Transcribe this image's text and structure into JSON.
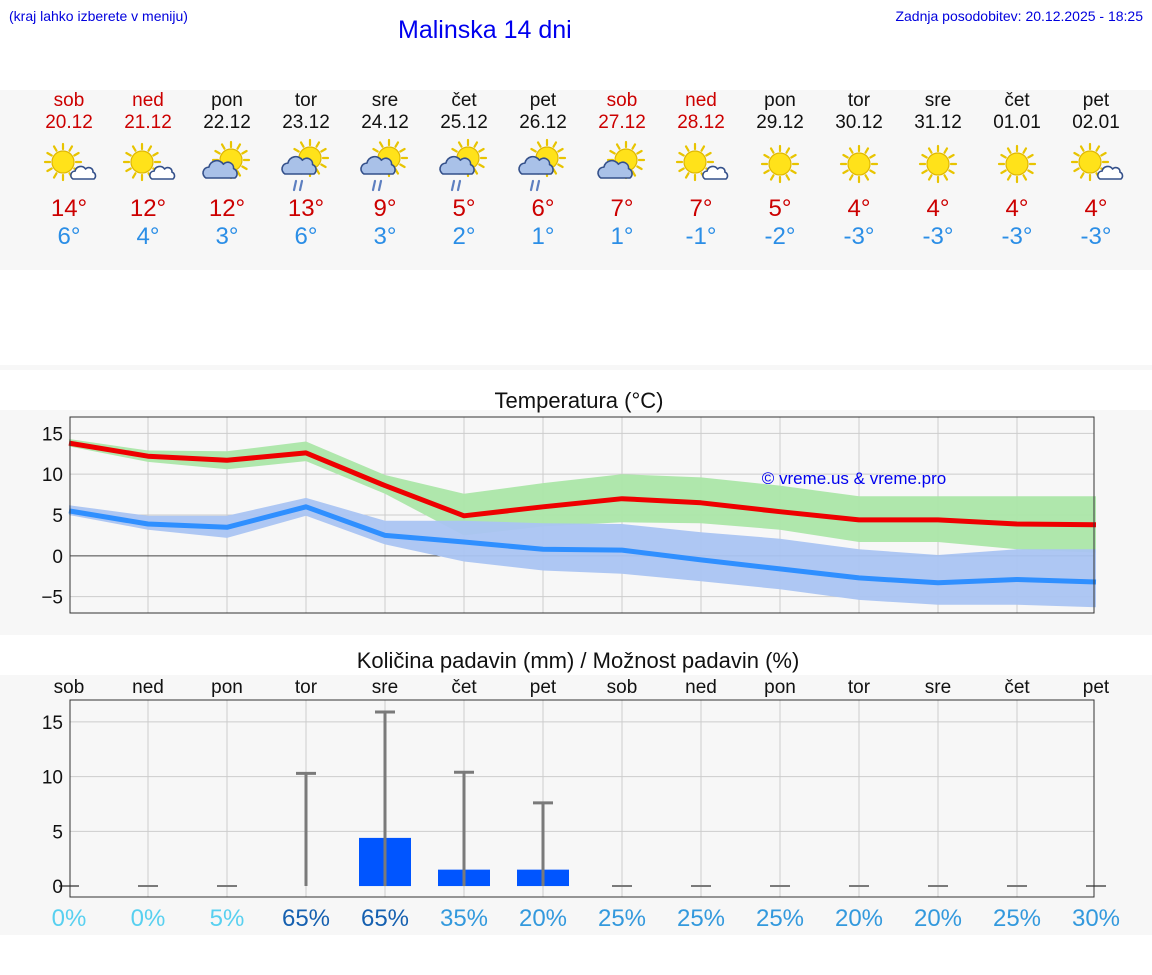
{
  "header": {
    "menu_hint": "(kraj lahko izberete v meniju)",
    "title": "Malinska 14 dni",
    "updated": "Zadnja posodobitev: 20.12.2025 - 18:25"
  },
  "days": [
    {
      "name": "sob",
      "date": "20.12",
      "weekend": true,
      "icon": "sun-cloud-icon",
      "tmax": "14°",
      "tmin": "6°"
    },
    {
      "name": "ned",
      "date": "21.12",
      "weekend": true,
      "icon": "sun-cloud-icon",
      "tmax": "12°",
      "tmin": "4°"
    },
    {
      "name": "pon",
      "date": "22.12",
      "weekend": false,
      "icon": "cloud-sun-icon",
      "tmax": "12°",
      "tmin": "3°"
    },
    {
      "name": "tor",
      "date": "23.12",
      "weekend": false,
      "icon": "cloud-rain-sun-icon",
      "tmax": "13°",
      "tmin": "6°"
    },
    {
      "name": "sre",
      "date": "24.12",
      "weekend": false,
      "icon": "cloud-rain-sun-icon",
      "tmax": "9°",
      "tmin": "3°"
    },
    {
      "name": "čet",
      "date": "25.12",
      "weekend": false,
      "icon": "cloud-rain-sun-icon",
      "tmax": "5°",
      "tmin": "2°"
    },
    {
      "name": "pet",
      "date": "26.12",
      "weekend": false,
      "icon": "cloud-rain-sun-icon",
      "tmax": "6°",
      "tmin": "1°"
    },
    {
      "name": "sob",
      "date": "27.12",
      "weekend": true,
      "icon": "cloud-sun-icon",
      "tmax": "7°",
      "tmin": "1°"
    },
    {
      "name": "ned",
      "date": "28.12",
      "weekend": true,
      "icon": "sun-cloud-icon",
      "tmax": "7°",
      "tmin": "-1°"
    },
    {
      "name": "pon",
      "date": "29.12",
      "weekend": false,
      "icon": "sun-icon",
      "tmax": "5°",
      "tmin": "-2°"
    },
    {
      "name": "tor",
      "date": "30.12",
      "weekend": false,
      "icon": "sun-icon",
      "tmax": "4°",
      "tmin": "-3°"
    },
    {
      "name": "sre",
      "date": "31.12",
      "weekend": false,
      "icon": "sun-icon",
      "tmax": "4°",
      "tmin": "-3°"
    },
    {
      "name": "čet",
      "date": "01.01",
      "weekend": false,
      "icon": "sun-icon",
      "tmax": "4°",
      "tmin": "-3°"
    },
    {
      "name": "pet",
      "date": "02.01",
      "weekend": false,
      "icon": "sun-cloud-icon",
      "tmax": "4°",
      "tmin": "-3°"
    }
  ],
  "colors": {
    "max_line": "#ee0000",
    "max_band": "#abe6a8",
    "min_line": "#2f8fff",
    "min_band": "#aac4f2",
    "precip_bar": "#0055ff",
    "error_bar": "#7a7a7a",
    "grid": "#cccccc",
    "prob_low": "#58d0f0",
    "prob_mid": "#3399dd",
    "prob_high": "#1560b0"
  },
  "chart_data": [
    {
      "type": "line",
      "title": "Temperatura (°C)",
      "watermark": "© vreme.us & vreme.pro",
      "x": [
        0,
        1,
        2,
        3,
        4,
        5,
        6,
        7,
        8,
        9,
        10,
        11,
        12,
        13
      ],
      "ylim": [
        -7,
        17
      ],
      "yticks": [
        15,
        10,
        5,
        0,
        -5
      ],
      "ytick_labels": [
        "15",
        "10",
        "5",
        "0",
        "−5"
      ],
      "series": [
        {
          "name": "max",
          "values": [
            13.8,
            12.2,
            11.7,
            12.6,
            8.6,
            4.9,
            6.0,
            7.0,
            6.5,
            5.4,
            4.4,
            4.4,
            3.9,
            3.8
          ],
          "band_low": [
            13.4,
            11.5,
            10.6,
            11.6,
            7.6,
            2.5,
            3.6,
            4.1,
            4.0,
            3.2,
            1.7,
            1.7,
            0.8,
            0.4
          ],
          "band_high": [
            14.3,
            12.9,
            12.8,
            14.0,
            9.9,
            7.6,
            8.9,
            10.0,
            9.6,
            8.6,
            7.3,
            7.3,
            7.3,
            7.3
          ]
        },
        {
          "name": "min",
          "values": [
            5.5,
            3.9,
            3.5,
            6.0,
            2.5,
            1.7,
            0.8,
            0.7,
            -0.5,
            -1.6,
            -2.7,
            -3.3,
            -2.9,
            -3.2
          ],
          "band_low": [
            5.0,
            3.2,
            2.2,
            4.9,
            1.4,
            -0.7,
            -1.8,
            -2.2,
            -3.1,
            -4.1,
            -5.4,
            -6.0,
            -6.0,
            -6.3
          ],
          "band_high": [
            6.2,
            4.9,
            4.9,
            7.1,
            4.3,
            4.3,
            4.0,
            3.9,
            2.9,
            2.1,
            0.8,
            0.1,
            0.8,
            0.8
          ]
        }
      ]
    },
    {
      "type": "bar",
      "title": "Količina padavin (mm) / Možnost padavin (%)",
      "categories": [
        "sob",
        "ned",
        "pon",
        "tor",
        "sre",
        "čet",
        "pet",
        "sob",
        "ned",
        "pon",
        "tor",
        "sre",
        "čet",
        "pet"
      ],
      "values": [
        0,
        0,
        0,
        0,
        4.4,
        1.5,
        1.5,
        0,
        0,
        0,
        0,
        0,
        0,
        0
      ],
      "error_high": [
        0,
        0,
        0,
        10.3,
        15.9,
        10.4,
        7.6,
        0,
        0,
        0,
        0,
        0,
        0,
        0
      ],
      "ylim": [
        -1,
        17
      ],
      "yticks": [
        15,
        10,
        5,
        0
      ],
      "ytick_labels": [
        "15",
        "10",
        "5",
        "0"
      ],
      "probability": [
        "0%",
        "0%",
        "5%",
        "65%",
        "65%",
        "35%",
        "20%",
        "25%",
        "25%",
        "25%",
        "20%",
        "20%",
        "25%",
        "30%"
      ],
      "probability_values": [
        0,
        0,
        5,
        65,
        65,
        35,
        20,
        25,
        25,
        25,
        20,
        20,
        25,
        30
      ]
    }
  ]
}
